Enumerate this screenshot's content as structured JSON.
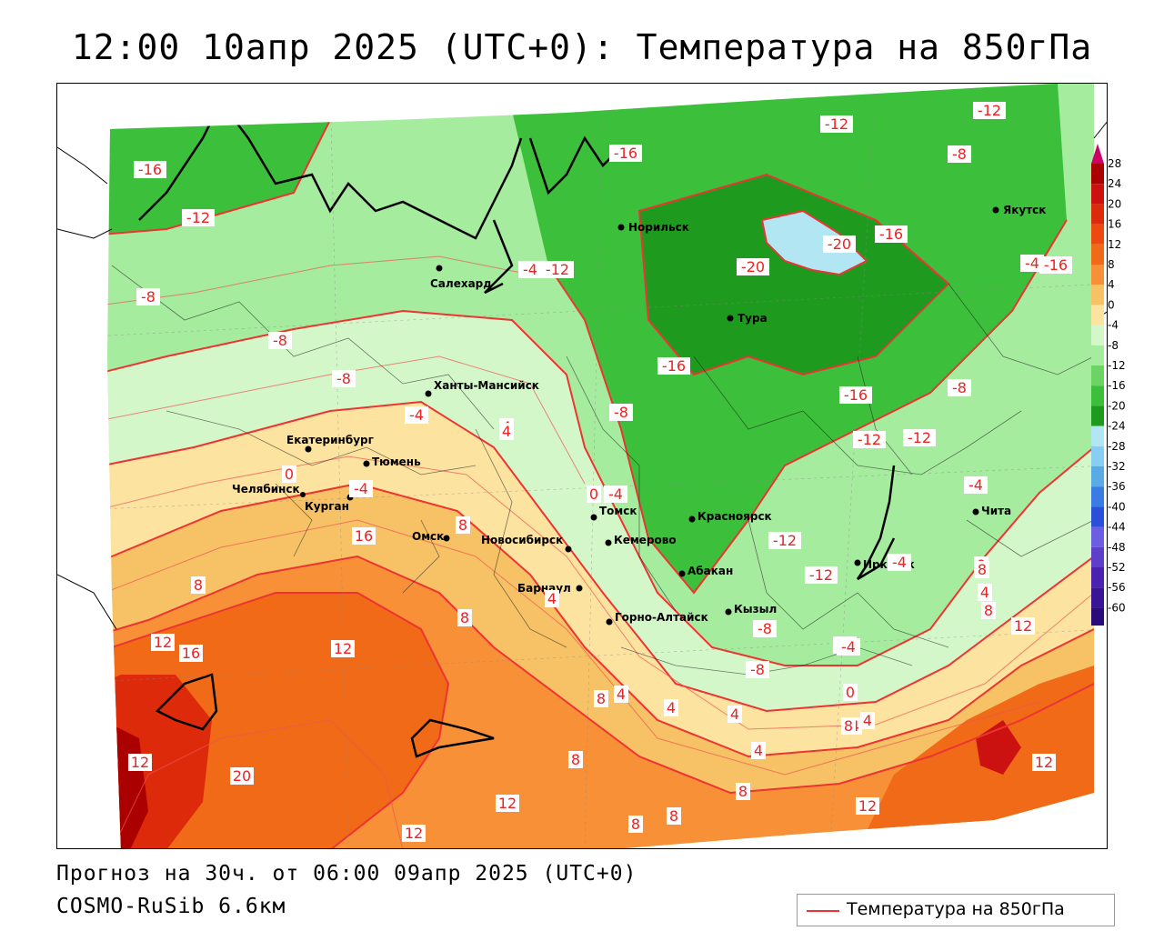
{
  "header": {
    "title": "12:00 10апр 2025 (UTC+0): Температура на 850гПа"
  },
  "footer": {
    "forecast": "Прогноз на 30ч. от 06:00 09апр 2025 (UTC+0)",
    "model": "COSMO-RuSib 6.6км"
  },
  "legend": {
    "line_label": "Температура на 850гПа",
    "line_color": "#ee3333"
  },
  "colorbar": {
    "labels": [
      "28",
      "24",
      "20",
      "16",
      "12",
      "8",
      "4",
      "0",
      "-4",
      "-8",
      "-12",
      "-16",
      "-20",
      "-24",
      "-28",
      "-32",
      "-36",
      "-40",
      "-44",
      "-48",
      "-52",
      "-56",
      "-60"
    ],
    "colors": [
      "#aa0000",
      "#cc1111",
      "#dd2a0a",
      "#ee4a10",
      "#f06a18",
      "#f89038",
      "#f7c265",
      "#fde3a0",
      "#d4f7c9",
      "#a6ec9f",
      "#6bd464",
      "#3cbf3a",
      "#1e9b1e",
      "#b2e6f2",
      "#88cdf2",
      "#5aaae6",
      "#3b7be6",
      "#2a4fd8",
      "#6c5ee0",
      "#5e3fc9",
      "#4a21b0",
      "#3a1496",
      "#2a0b7c"
    ]
  },
  "cities": [
    {
      "name": "Норильск"
    },
    {
      "name": "Салехард"
    },
    {
      "name": "Тура"
    },
    {
      "name": "Якутск"
    },
    {
      "name": "Ханты-Мансийск"
    },
    {
      "name": "Екатеринбург"
    },
    {
      "name": "Тюмень"
    },
    {
      "name": "Челябинск"
    },
    {
      "name": "Курган"
    },
    {
      "name": "Омск"
    },
    {
      "name": "Томск"
    },
    {
      "name": "Новосибирск"
    },
    {
      "name": "Кемерово"
    },
    {
      "name": "Красноярск"
    },
    {
      "name": "Абакан"
    },
    {
      "name": "Барнаул"
    },
    {
      "name": "Горно-Алтайск"
    },
    {
      "name": "Кызыл"
    },
    {
      "name": "Иркутск"
    },
    {
      "name": "Чита"
    }
  ],
  "isotherm_labels": [
    "-16",
    "-12",
    "-8",
    "-16",
    "-12",
    "-8",
    "-12",
    "-16",
    "-20",
    "-20",
    "-16",
    "-12",
    "-4",
    "-8",
    "-8",
    "-8",
    "-4",
    "4",
    "0",
    "-4",
    "0",
    "-4",
    "-8",
    "-16",
    "-16",
    "-12",
    "-12",
    "-12",
    "-12",
    "-8",
    "-4",
    "-8",
    "-4",
    "-4",
    "-4",
    "0",
    "8",
    "8",
    "8",
    "4",
    "4",
    "8",
    "12",
    "16",
    "12",
    "12",
    "20",
    "16",
    "8",
    "12",
    "8",
    "12",
    "8",
    "8",
    "4",
    "4",
    "4",
    "4",
    "4",
    "8",
    "0",
    "8",
    "4",
    "8",
    "12",
    "12",
    "12",
    "-4",
    "4"
  ]
}
